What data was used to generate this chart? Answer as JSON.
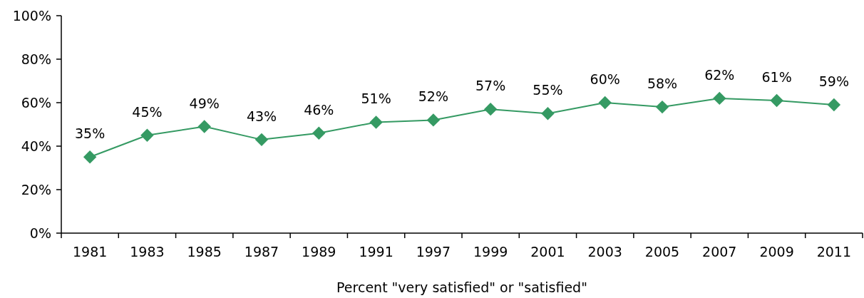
{
  "chart_data": {
    "type": "line",
    "xlabel": "Percent \"very satisfied\" or \"satisfied\"",
    "categories": [
      "1981",
      "1983",
      "1985",
      "1987",
      "1989",
      "1991",
      "1997",
      "1999",
      "2001",
      "2003",
      "2005",
      "2007",
      "2009",
      "2011"
    ],
    "series": [
      {
        "color": "#359a63",
        "values": [
          35,
          45,
          49,
          43,
          46,
          51,
          52,
          57,
          55,
          60,
          58,
          62,
          61,
          59
        ],
        "value_labels": [
          "35%",
          "45%",
          "49%",
          "43%",
          "46%",
          "51%",
          "52%",
          "57%",
          "55%",
          "60%",
          "58%",
          "62%",
          "61%",
          "59%"
        ]
      }
    ],
    "ylim": [
      0,
      100
    ],
    "yticks": [
      {
        "value": 0,
        "label": "0%"
      },
      {
        "value": 20,
        "label": "20%"
      },
      {
        "value": 40,
        "label": "40%"
      },
      {
        "value": 60,
        "label": "60%"
      },
      {
        "value": 80,
        "label": "80%"
      },
      {
        "value": 100,
        "label": "100%"
      }
    ],
    "marker": "diamond",
    "grid": false
  }
}
